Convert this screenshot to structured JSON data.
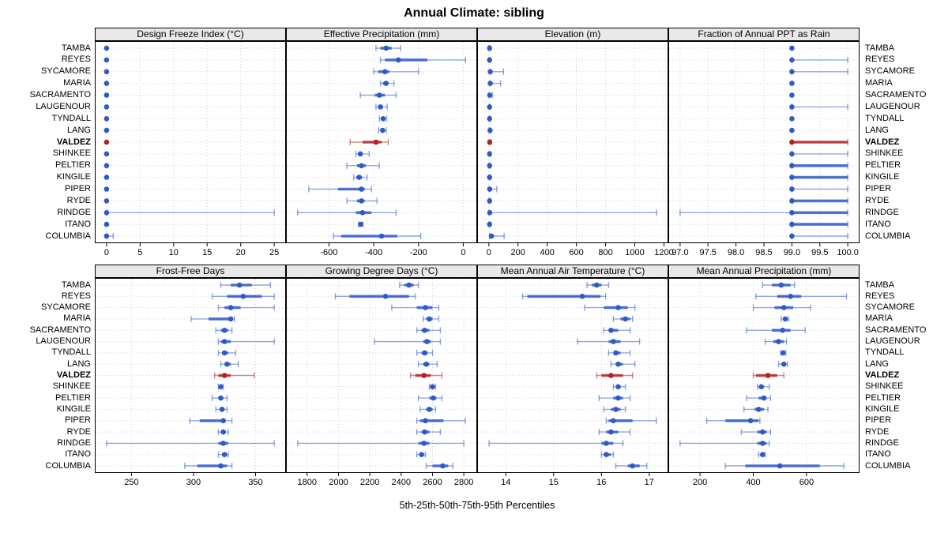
{
  "title": "Annual Climate: sibling",
  "axis_label": "5th-25th-50th-75th-95th Percentiles",
  "stations": [
    "TAMBA",
    "REYES",
    "SYCAMORE",
    "MARIA",
    "SACRAMENTO",
    "LAUGENOUR",
    "TYNDALL",
    "LANG",
    "VALDEZ",
    "SHINKEE",
    "PELTIER",
    "KINGILE",
    "PIPER",
    "RYDE",
    "RINDGE",
    "ITANO",
    "COLUMBIA"
  ],
  "highlight_station": "VALDEZ",
  "colors": {
    "primary": "#2e59c9",
    "highlight": "#b22222",
    "grid": "#cfcfcf",
    "strip_bg": "#e9e9e9",
    "border": "#000000"
  },
  "chart_data": [
    {
      "type": "dotplot-percentiles",
      "row": 1,
      "slug": "design-freeze-index",
      "title": "Design Freeze Index (°C)",
      "percentile_labels": [
        "5th",
        "25th",
        "50th",
        "75th",
        "95th"
      ],
      "xlim": [
        -1.75,
        26.75
      ],
      "ticks": {
        "values": [
          0,
          5,
          10,
          15,
          20,
          25
        ],
        "labels": [
          "0",
          "5",
          "10",
          "15",
          "20",
          "25"
        ]
      },
      "values": [
        [
          0,
          0,
          0,
          0,
          0
        ],
        [
          0,
          0,
          0,
          0,
          0
        ],
        [
          0,
          0,
          0,
          0,
          0
        ],
        [
          0,
          0,
          0,
          0,
          0
        ],
        [
          0,
          0,
          0,
          0,
          0
        ],
        [
          0,
          0,
          0,
          0,
          0
        ],
        [
          0,
          0,
          0,
          0,
          0
        ],
        [
          0,
          0,
          0,
          0,
          0
        ],
        [
          0,
          0,
          0,
          0,
          0
        ],
        [
          0,
          0,
          0,
          0,
          0
        ],
        [
          0,
          0,
          0,
          0,
          0
        ],
        [
          0,
          0,
          0,
          0,
          0
        ],
        [
          0,
          0,
          0,
          0,
          0
        ],
        [
          0,
          0,
          0,
          0,
          0
        ],
        [
          0,
          0,
          0,
          0,
          25
        ],
        [
          0,
          0,
          0,
          0,
          0
        ],
        [
          0,
          0,
          0,
          0,
          1
        ]
      ]
    },
    {
      "type": "dotplot-percentiles",
      "row": 1,
      "slug": "effective-precipitation",
      "title": "Effective Precipitation (mm)",
      "percentile_labels": [
        "5th",
        "25th",
        "50th",
        "75th",
        "95th"
      ],
      "xlim": [
        -792,
        62
      ],
      "ticks": {
        "values": [
          -600,
          -400,
          -200,
          0
        ],
        "labels": [
          "-600",
          "-400",
          "-200",
          "0"
        ]
      },
      "values": [
        [
          -390,
          -370,
          -345,
          -320,
          -280
        ],
        [
          -370,
          -350,
          -290,
          -160,
          10
        ],
        [
          -400,
          -380,
          -350,
          -330,
          -200
        ],
        [
          -370,
          -360,
          -345,
          -335,
          -310
        ],
        [
          -460,
          -395,
          -375,
          -350,
          -300
        ],
        [
          -390,
          -380,
          -370,
          -360,
          -340
        ],
        [
          -375,
          -365,
          -358,
          -350,
          -342
        ],
        [
          -378,
          -368,
          -360,
          -352,
          -344
        ],
        [
          -505,
          -450,
          -390,
          -365,
          -335
        ],
        [
          -480,
          -470,
          -460,
          -450,
          -420
        ],
        [
          -520,
          -475,
          -455,
          -435,
          -375
        ],
        [
          -490,
          -478,
          -465,
          -452,
          -430
        ],
        [
          -690,
          -560,
          -455,
          -440,
          -410
        ],
        [
          -520,
          -475,
          -455,
          -440,
          -385
        ],
        [
          -740,
          -480,
          -450,
          -410,
          -300
        ],
        [
          -468,
          -463,
          -458,
          -453,
          -448
        ],
        [
          -580,
          -545,
          -365,
          -295,
          -190
        ]
      ]
    },
    {
      "type": "dotplot-percentiles",
      "row": 1,
      "slug": "elevation",
      "title": "Elevation (m)",
      "percentile_labels": [
        "5th",
        "25th",
        "50th",
        "75th",
        "95th"
      ],
      "xlim": [
        -80,
        1230
      ],
      "ticks": {
        "values": [
          0,
          200,
          400,
          600,
          800,
          1000,
          1200
        ],
        "labels": [
          "0",
          "200",
          "400",
          "600",
          "800",
          "1000",
          "1200"
        ]
      },
      "values": [
        [
          2,
          3,
          5,
          8,
          10
        ],
        [
          2,
          3,
          5,
          8,
          10
        ],
        [
          5,
          8,
          10,
          15,
          100
        ],
        [
          5,
          8,
          10,
          15,
          80
        ],
        [
          2,
          4,
          6,
          10,
          25
        ],
        [
          2,
          3,
          5,
          8,
          10
        ],
        [
          2,
          3,
          5,
          8,
          10
        ],
        [
          3,
          5,
          8,
          10,
          12
        ],
        [
          2,
          4,
          6,
          10,
          15
        ],
        [
          2,
          3,
          5,
          8,
          10
        ],
        [
          2,
          3,
          5,
          8,
          10
        ],
        [
          2,
          3,
          5,
          8,
          10
        ],
        [
          2,
          4,
          6,
          10,
          55
        ],
        [
          2,
          3,
          5,
          8,
          10
        ],
        [
          2,
          4,
          6,
          10,
          1150
        ],
        [
          2,
          3,
          5,
          8,
          10
        ],
        [
          5,
          10,
          18,
          30,
          105
        ]
      ]
    },
    {
      "type": "dotplot-percentiles",
      "row": 1,
      "slug": "fraction-ppt-rain",
      "title": "Fraction of Annual PPT as Rain",
      "percentile_labels": [
        "5th",
        "25th",
        "50th",
        "75th",
        "95th"
      ],
      "xlim": [
        96.79,
        100.21
      ],
      "ticks": {
        "values": [
          97.0,
          97.5,
          98.0,
          98.5,
          99.0,
          99.5,
          100.0
        ],
        "labels": [
          "97.0",
          "97.5",
          "98.0",
          "98.5",
          "99.0",
          "99.5",
          "100.0"
        ]
      },
      "values": [
        [
          99,
          99,
          99,
          99,
          99
        ],
        [
          99,
          99,
          99,
          99,
          100
        ],
        [
          99,
          99,
          99,
          99,
          100
        ],
        [
          99,
          99,
          99,
          99,
          99
        ],
        [
          99,
          99,
          99,
          99,
          99
        ],
        [
          99,
          99,
          99,
          99,
          100
        ],
        [
          99,
          99,
          99,
          99,
          99
        ],
        [
          99,
          99,
          99,
          99,
          99
        ],
        [
          99,
          99,
          99,
          100,
          100
        ],
        [
          99,
          99,
          99,
          99,
          100
        ],
        [
          99,
          99,
          99,
          100,
          100
        ],
        [
          99,
          99,
          99,
          100,
          100
        ],
        [
          99,
          99,
          99,
          99,
          100
        ],
        [
          99,
          99,
          99,
          100,
          100
        ],
        [
          97,
          99,
          99,
          100,
          100
        ],
        [
          99,
          99,
          99,
          100,
          100
        ],
        [
          99,
          99,
          99,
          99,
          100
        ]
      ]
    },
    {
      "type": "dotplot-percentiles",
      "row": 2,
      "slug": "frost-free-days",
      "title": "Frost-Free Days",
      "percentile_labels": [
        "5th",
        "25th",
        "50th",
        "75th",
        "95th"
      ],
      "xlim": [
        220.5,
        374.5
      ],
      "ticks": {
        "values": [
          250,
          300,
          350
        ],
        "labels": [
          "250",
          "300",
          "350"
        ]
      },
      "values": [
        [
          322,
          330,
          337,
          347,
          362
        ],
        [
          315,
          327,
          340,
          355,
          365
        ],
        [
          320,
          325,
          330,
          338,
          365
        ],
        [
          298,
          312,
          330,
          332,
          333
        ],
        [
          318,
          322,
          325,
          328,
          331
        ],
        [
          320,
          322,
          325,
          330,
          365
        ],
        [
          320,
          323,
          325,
          328,
          334
        ],
        [
          322,
          325,
          327,
          330,
          336
        ],
        [
          317,
          320,
          325,
          330,
          349
        ],
        [
          320,
          321,
          322,
          323,
          324
        ],
        [
          315,
          320,
          322,
          324,
          327
        ],
        [
          318,
          321,
          323,
          325,
          327
        ],
        [
          297,
          305,
          324,
          326,
          331
        ],
        [
          320,
          322,
          324,
          326,
          328
        ],
        [
          230,
          320,
          324,
          328,
          365
        ],
        [
          320,
          323,
          325,
          327,
          328
        ],
        [
          293,
          303,
          322,
          327,
          331
        ]
      ]
    },
    {
      "type": "dotplot-percentiles",
      "row": 2,
      "slug": "growing-degree-days",
      "title": "Growing Degree Days (°C)",
      "percentile_labels": [
        "5th",
        "25th",
        "50th",
        "75th",
        "95th"
      ],
      "xlim": [
        1665,
        2885
      ],
      "ticks": {
        "values": [
          1800,
          2000,
          2200,
          2400,
          2600,
          2800
        ],
        "labels": [
          "1800",
          "2000",
          "2200",
          "2400",
          "2600",
          "2800"
        ]
      },
      "values": [
        [
          2390,
          2420,
          2450,
          2480,
          2510
        ],
        [
          1980,
          2070,
          2300,
          2450,
          2490
        ],
        [
          2340,
          2500,
          2555,
          2600,
          2640
        ],
        [
          2540,
          2560,
          2580,
          2600,
          2640
        ],
        [
          2500,
          2530,
          2550,
          2580,
          2650
        ],
        [
          2230,
          2540,
          2565,
          2590,
          2650
        ],
        [
          2500,
          2530,
          2550,
          2570,
          2600
        ],
        [
          2510,
          2540,
          2560,
          2580,
          2630
        ],
        [
          2460,
          2490,
          2545,
          2590,
          2660
        ],
        [
          2580,
          2590,
          2600,
          2610,
          2620
        ],
        [
          2510,
          2580,
          2605,
          2625,
          2660
        ],
        [
          2520,
          2560,
          2580,
          2600,
          2620
        ],
        [
          2500,
          2520,
          2555,
          2670,
          2810
        ],
        [
          2500,
          2530,
          2550,
          2580,
          2650
        ],
        [
          1740,
          2510,
          2545,
          2580,
          2800
        ],
        [
          2500,
          2515,
          2530,
          2545,
          2555
        ],
        [
          2560,
          2600,
          2665,
          2700,
          2730
        ]
      ]
    },
    {
      "type": "dotplot-percentiles",
      "row": 2,
      "slug": "mean-annual-air-temperature",
      "title": "Mean Annual Air Temperature (°C)",
      "percentile_labels": [
        "5th",
        "25th",
        "50th",
        "75th",
        "95th"
      ],
      "xlim": [
        13.4,
        17.4
      ],
      "ticks": {
        "values": [
          14,
          15,
          16,
          17
        ],
        "labels": [
          "14",
          "15",
          "16",
          "17"
        ]
      },
      "values": [
        [
          15.7,
          15.8,
          15.9,
          16.0,
          16.15
        ],
        [
          14.35,
          14.45,
          15.6,
          15.98,
          16.09
        ],
        [
          15.65,
          16.05,
          16.35,
          16.55,
          16.7
        ],
        [
          16.25,
          16.4,
          16.5,
          16.6,
          16.65
        ],
        [
          16.05,
          16.15,
          16.2,
          16.35,
          16.6
        ],
        [
          15.5,
          16.15,
          16.25,
          16.4,
          16.8
        ],
        [
          16.15,
          16.25,
          16.3,
          16.4,
          16.6
        ],
        [
          16.2,
          16.3,
          16.35,
          16.45,
          16.7
        ],
        [
          15.9,
          16.0,
          16.2,
          16.45,
          16.65
        ],
        [
          16.25,
          16.3,
          16.35,
          16.4,
          16.5
        ],
        [
          15.95,
          16.25,
          16.35,
          16.45,
          16.6
        ],
        [
          16.05,
          16.2,
          16.3,
          16.4,
          16.5
        ],
        [
          16.1,
          16.15,
          16.25,
          16.65,
          17.15
        ],
        [
          15.95,
          16.1,
          16.2,
          16.35,
          16.6
        ],
        [
          13.65,
          16.0,
          16.1,
          16.25,
          16.45
        ],
        [
          16.0,
          16.05,
          16.1,
          16.2,
          16.25
        ],
        [
          16.3,
          16.55,
          16.65,
          16.8,
          16.95
        ]
      ]
    },
    {
      "type": "dotplot-percentiles",
      "row": 2,
      "slug": "mean-annual-precipitation",
      "title": "Mean Annual Precipitation (mm)",
      "percentile_labels": [
        "5th",
        "25th",
        "50th",
        "75th",
        "95th"
      ],
      "xlim": [
        81,
        799
      ],
      "ticks": {
        "values": [
          200,
          400,
          600
        ],
        "labels": [
          "200",
          "400",
          "600"
        ]
      },
      "values": [
        [
          435,
          470,
          505,
          540,
          555
        ],
        [
          410,
          490,
          540,
          580,
          750
        ],
        [
          400,
          480,
          515,
          550,
          615
        ],
        [
          505,
          512,
          520,
          528,
          532
        ],
        [
          375,
          470,
          510,
          540,
          595
        ],
        [
          445,
          475,
          495,
          515,
          525
        ],
        [
          503,
          508,
          512,
          518,
          522
        ],
        [
          495,
          505,
          515,
          522,
          528
        ],
        [
          400,
          410,
          455,
          490,
          515
        ],
        [
          415,
          422,
          430,
          440,
          460
        ],
        [
          375,
          420,
          440,
          450,
          465
        ],
        [
          365,
          405,
          420,
          440,
          455
        ],
        [
          225,
          295,
          390,
          420,
          425
        ],
        [
          355,
          415,
          435,
          450,
          465
        ],
        [
          125,
          415,
          435,
          450,
          460
        ],
        [
          420,
          428,
          435,
          442,
          445
        ],
        [
          295,
          370,
          500,
          650,
          740
        ]
      ]
    }
  ]
}
